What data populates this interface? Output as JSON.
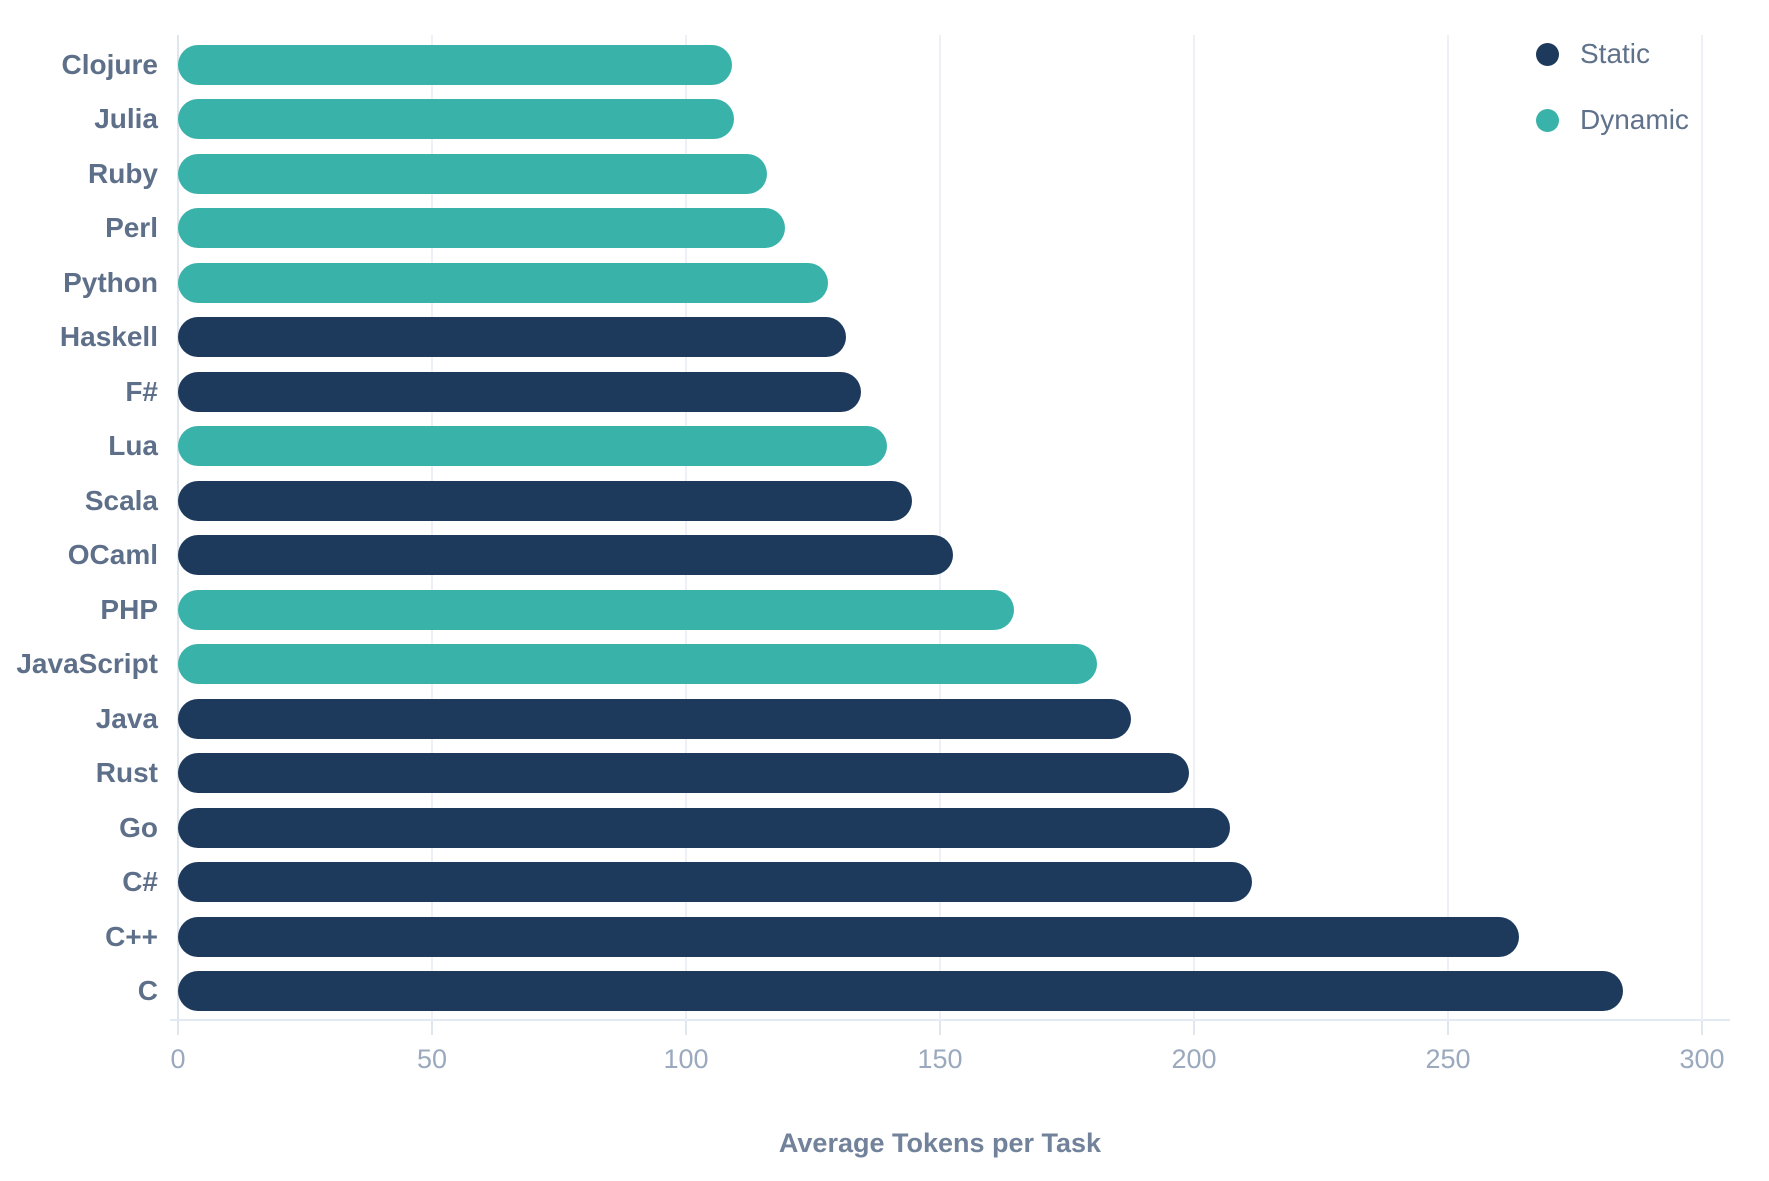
{
  "chart_data": {
    "type": "bar",
    "orientation": "horizontal",
    "title": "",
    "xlabel": "Average Tokens per Task",
    "ylabel": "",
    "xlim": [
      0,
      300
    ],
    "xticks": [
      0,
      50,
      100,
      150,
      200,
      250,
      300
    ],
    "grid": true,
    "legend": {
      "position": "top-right",
      "entries": [
        {
          "label": "Static",
          "color": "#1d3a5c"
        },
        {
          "label": "Dynamic",
          "color": "#39b2aa"
        }
      ]
    },
    "categories": [
      "Clojure",
      "Julia",
      "Ruby",
      "Perl",
      "Python",
      "Haskell",
      "F#",
      "Lua",
      "Scala",
      "OCaml",
      "PHP",
      "JavaScript",
      "Java",
      "Rust",
      "Go",
      "C#",
      "C++",
      "C"
    ],
    "values": [
      109,
      109.5,
      116,
      119.5,
      128,
      131.5,
      134.5,
      139.5,
      144.5,
      152.5,
      164.5,
      181,
      187.5,
      199,
      207,
      211.5,
      264,
      284.5
    ],
    "groups": [
      "Dynamic",
      "Dynamic",
      "Dynamic",
      "Dynamic",
      "Dynamic",
      "Static",
      "Static",
      "Dynamic",
      "Static",
      "Static",
      "Dynamic",
      "Dynamic",
      "Static",
      "Static",
      "Static",
      "Static",
      "Static",
      "Static"
    ],
    "series_colors": {
      "Static": "#1d3a5c",
      "Dynamic": "#39b2aa"
    }
  },
  "colors": {
    "background": "#ffffff",
    "gridline": "#edf1f6",
    "axis_line": "#e4eaf1",
    "y_label_text": "#5e7089",
    "tick_label_text": "#9aa9bd",
    "axis_title_text": "#71829a"
  }
}
